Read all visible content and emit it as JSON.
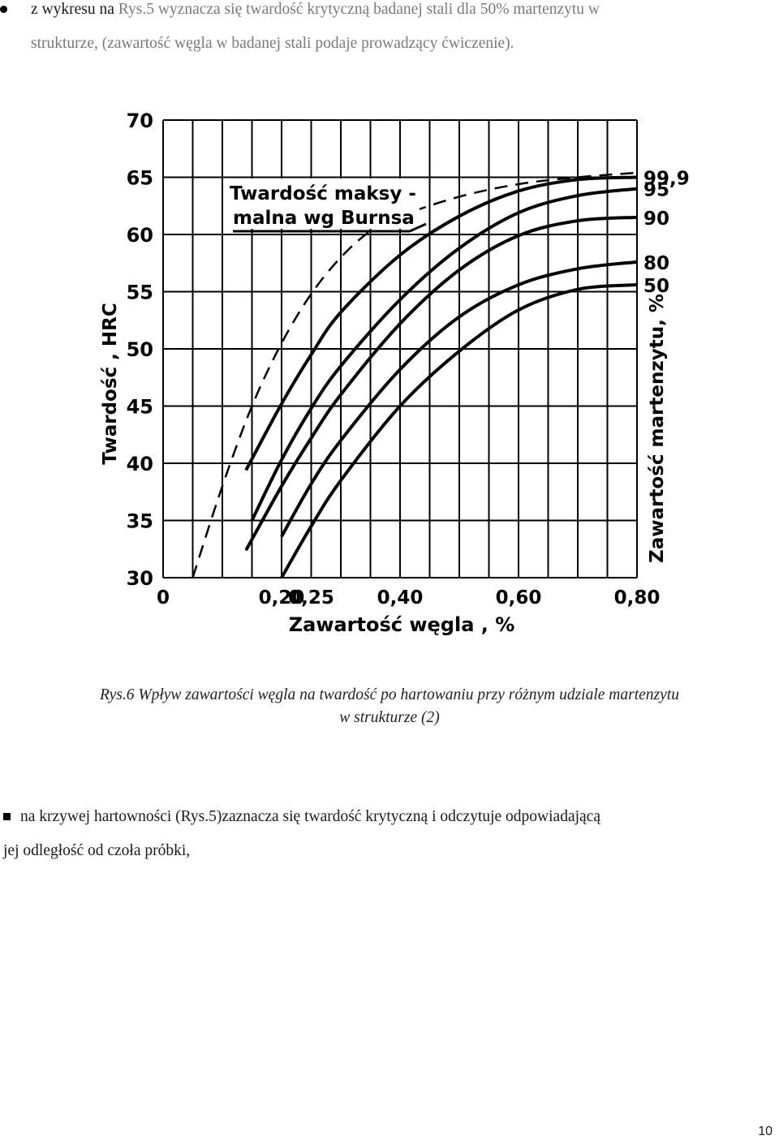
{
  "intro": {
    "line1_prefix": "z wykresu na ",
    "line1_rest": "Rys.5 wyznacza się twardość krytyczną badanej stali dla 50% martenzytu w",
    "line2": "strukturze, (zawartość węgla w badanej stali podaje prowadzący ćwiczenie)."
  },
  "chart_data": {
    "type": "line",
    "title": "",
    "annotation": [
      "Twardość maksy -",
      "malna wg Burnsa"
    ],
    "xlabel": "Zawartość węgla , %",
    "ylabel": "Twardość , HRC",
    "right_label": "Zawartość martenzytu, %",
    "xlim": [
      0,
      0.8
    ],
    "ylim": [
      30,
      70
    ],
    "x_tick_labels": [
      {
        "value": 0,
        "label": "0"
      },
      {
        "value": 0.2,
        "label": "0,20"
      },
      {
        "value": 0.25,
        "label": "0,25"
      },
      {
        "value": 0.4,
        "label": "0,40"
      },
      {
        "value": 0.6,
        "label": "0,60"
      },
      {
        "value": 0.8,
        "label": "0,80"
      }
    ],
    "y_ticks": [
      30,
      35,
      40,
      45,
      50,
      55,
      60,
      65,
      70
    ],
    "grid": true,
    "series": [
      {
        "name": "Burns",
        "dashed": true,
        "x": [
          0.05,
          0.1,
          0.15,
          0.2,
          0.25,
          0.3,
          0.35,
          0.4,
          0.5,
          0.6,
          0.7,
          0.8
        ],
        "y": [
          30,
          38,
          45,
          50.5,
          54.8,
          58,
          60.3,
          61.6,
          63.3,
          64.4,
          65,
          65.4
        ]
      },
      {
        "name": "99,9",
        "x": [
          0.14,
          0.2,
          0.25,
          0.3,
          0.4,
          0.5,
          0.6,
          0.7,
          0.8
        ],
        "y": [
          39.4,
          45.2,
          49.5,
          53.2,
          58.2,
          61.6,
          63.8,
          64.8,
          65
        ]
      },
      {
        "name": "95",
        "x": [
          0.15,
          0.2,
          0.25,
          0.3,
          0.4,
          0.5,
          0.6,
          0.7,
          0.8
        ],
        "y": [
          35,
          40.3,
          44.8,
          48.5,
          54.3,
          58.8,
          61.9,
          63.4,
          64
        ]
      },
      {
        "name": "90",
        "x": [
          0.14,
          0.2,
          0.25,
          0.3,
          0.4,
          0.5,
          0.6,
          0.7,
          0.8
        ],
        "y": [
          32.4,
          38,
          42.2,
          46,
          52.2,
          56.9,
          59.9,
          61.2,
          61.5
        ]
      },
      {
        "name": "80",
        "x": [
          0.2,
          0.25,
          0.3,
          0.4,
          0.5,
          0.6,
          0.7,
          0.8
        ],
        "y": [
          33.6,
          38.2,
          42,
          48.2,
          52.8,
          55.6,
          57,
          57.6
        ]
      },
      {
        "name": "50",
        "x": [
          0.2,
          0.25,
          0.3,
          0.4,
          0.5,
          0.6,
          0.7,
          0.8
        ],
        "y": [
          30,
          34.5,
          38.5,
          45,
          49.8,
          53.4,
          55.2,
          55.6
        ]
      }
    ]
  },
  "caption": {
    "line1": "Rys.6 Wpływ zawartości węgla na twardość po hartowaniu przy różnym udziale martenzytu",
    "line2": "w strukturze (2)"
  },
  "para": {
    "line1": "na krzywej hartowności (Rys.5)zaznacza się twardość krytyczną i odczytuje odpowiadającą",
    "line2": "jej odległość od czoła próbki,"
  },
  "page_number": "10"
}
